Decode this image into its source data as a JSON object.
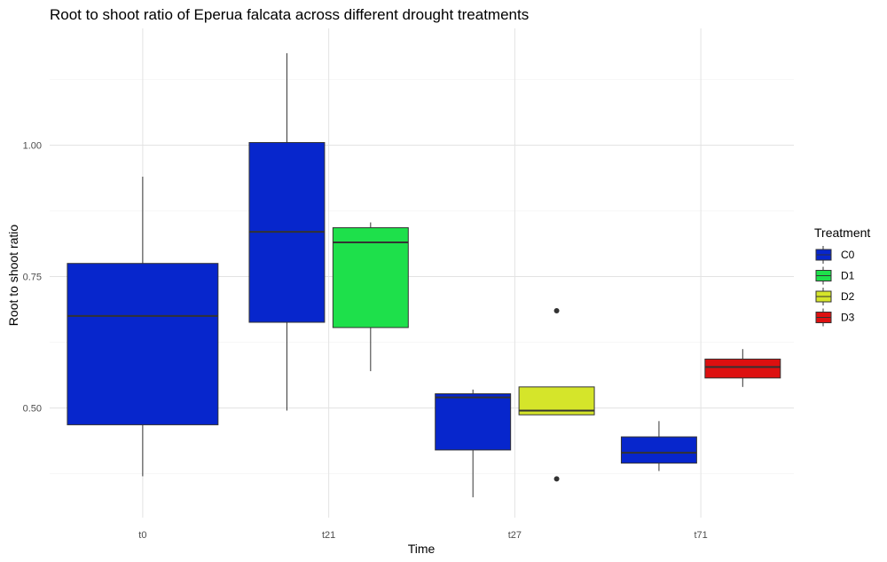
{
  "chart_data": {
    "type": "boxplot",
    "title": "Root to shoot ratio of Eperua falcata across different drought treatments",
    "xlabel": "Time",
    "ylabel": "Root to shoot ratio",
    "ylim": [
      0.3,
      1.2
    ],
    "yticks": [
      0.5,
      0.75,
      1.0
    ],
    "ytick_labels": [
      "0.50",
      "0.75",
      "1.00"
    ],
    "categories": [
      "t0",
      "t21",
      "t27",
      "t71"
    ],
    "grid": true,
    "legend": {
      "title": "Treatment",
      "position": "right",
      "entries": [
        {
          "name": "C0",
          "color": "#0726CC"
        },
        {
          "name": "D1",
          "color": "#1EE04B"
        },
        {
          "name": "D2",
          "color": "#D5E52A"
        },
        {
          "name": "D3",
          "color": "#DD1010"
        }
      ]
    },
    "boxes": [
      {
        "category": "t0",
        "treatment": "C0",
        "min": 0.37,
        "q1": 0.468,
        "median": 0.675,
        "q3": 0.775,
        "max": 0.94,
        "outliers": []
      },
      {
        "category": "t21",
        "treatment": "C0",
        "min": 0.495,
        "q1": 0.663,
        "median": 0.835,
        "q3": 1.005,
        "max": 1.175,
        "outliers": []
      },
      {
        "category": "t21",
        "treatment": "D1",
        "min": 0.57,
        "q1": 0.653,
        "median": 0.815,
        "q3": 0.843,
        "max": 0.853,
        "outliers": []
      },
      {
        "category": "t27",
        "treatment": "C0",
        "min": 0.33,
        "q1": 0.42,
        "median": 0.52,
        "q3": 0.527,
        "max": 0.535,
        "outliers": []
      },
      {
        "category": "t27",
        "treatment": "D2",
        "min": 0.487,
        "q1": 0.487,
        "median": 0.495,
        "q3": 0.54,
        "max": 0.54,
        "outliers": [
          0.685,
          0.365
        ]
      },
      {
        "category": "t71",
        "treatment": "C0",
        "min": 0.38,
        "q1": 0.395,
        "median": 0.415,
        "q3": 0.445,
        "max": 0.475,
        "outliers": []
      },
      {
        "category": "t71",
        "treatment": "D3",
        "min": 0.54,
        "q1": 0.557,
        "median": 0.578,
        "q3": 0.593,
        "max": 0.612,
        "outliers": []
      }
    ]
  }
}
